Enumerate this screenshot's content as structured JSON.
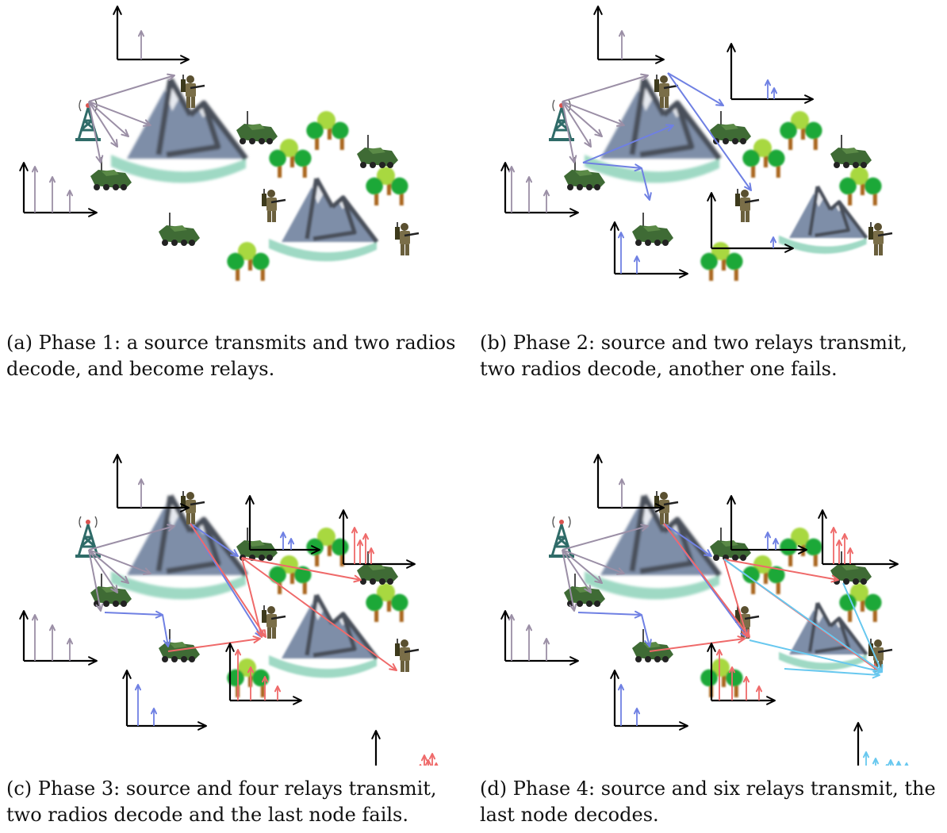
{
  "figure": {
    "panels": [
      {
        "id": "a",
        "caption": "(a) Phase 1: a source transmits and two radios decode, and become relays."
      },
      {
        "id": "b",
        "caption": "(b) Phase 2: source and two relays transmit, two radios decode, another one fails."
      },
      {
        "id": "c",
        "caption": "(c) Phase 3: source and four relays transmit, two radios decode and the last node fails."
      },
      {
        "id": "d",
        "caption": "(d) Phase 4: source and six relays transmit, the last node decodes."
      }
    ],
    "colors": {
      "phase1": "#9b8fa6",
      "phase2": "#6f80e3",
      "phase3": "#ef6a6a",
      "phase4": "#68c8ef",
      "axis": "#000000"
    },
    "icons": [
      "tower-icon",
      "vehicle-icon",
      "soldier-icon",
      "mountain-icon",
      "trees-icon"
    ]
  }
}
